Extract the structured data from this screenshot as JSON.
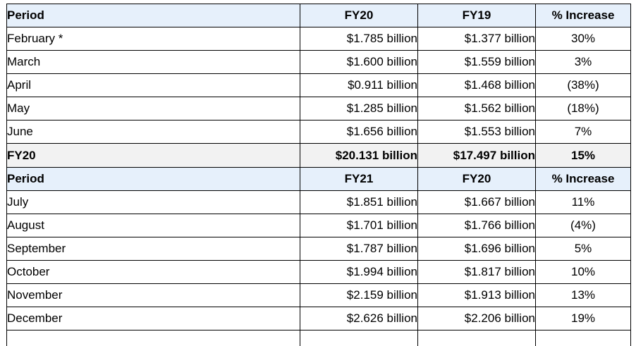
{
  "sections": [
    {
      "header": {
        "period": "Period",
        "col_a": "FY20",
        "col_b": "FY19",
        "pct": "% Increase"
      },
      "rows": [
        {
          "period": "February *",
          "a": "$1.785 billion",
          "b": "$1.377 billion",
          "pct": "30%"
        },
        {
          "period": "March",
          "a": "$1.600 billion",
          "b": "$1.559 billion",
          "pct": "3%"
        },
        {
          "period": "April",
          "a": "$0.911 billion",
          "b": "$1.468 billion",
          "pct": "(38%)"
        },
        {
          "period": "May",
          "a": "$1.285 billion",
          "b": "$1.562 billion",
          "pct": "(18%)"
        },
        {
          "period": "June",
          "a": "$1.656 billion",
          "b": "$1.553 billion",
          "pct": "7%"
        }
      ],
      "total": {
        "period": "FY20",
        "a": "$20.131 billion",
        "b": "$17.497 billion",
        "pct": "15%"
      }
    },
    {
      "header": {
        "period": "Period",
        "col_a": "FY21",
        "col_b": "FY20",
        "pct": "% Increase"
      },
      "rows": [
        {
          "period": "July",
          "a": "$1.851 billion",
          "b": "$1.667 billion",
          "pct": "11%"
        },
        {
          "period": "August",
          "a": "$1.701 billion",
          "b": "$1.766 billion",
          "pct": "(4%)"
        },
        {
          "period": "September",
          "a": "$1.787 billion",
          "b": "$1.696 billion",
          "pct": "5%"
        },
        {
          "period": "October",
          "a": "$1.994 billion",
          "b": "$1.817 billion",
          "pct": "10%"
        },
        {
          "period": "November",
          "a": "$2.159 billion",
          "b": "$1.913 billion",
          "pct": "13%"
        },
        {
          "period": "December",
          "a": "$2.626 billion",
          "b": "$2.206 billion",
          "pct": "19%"
        }
      ]
    }
  ]
}
